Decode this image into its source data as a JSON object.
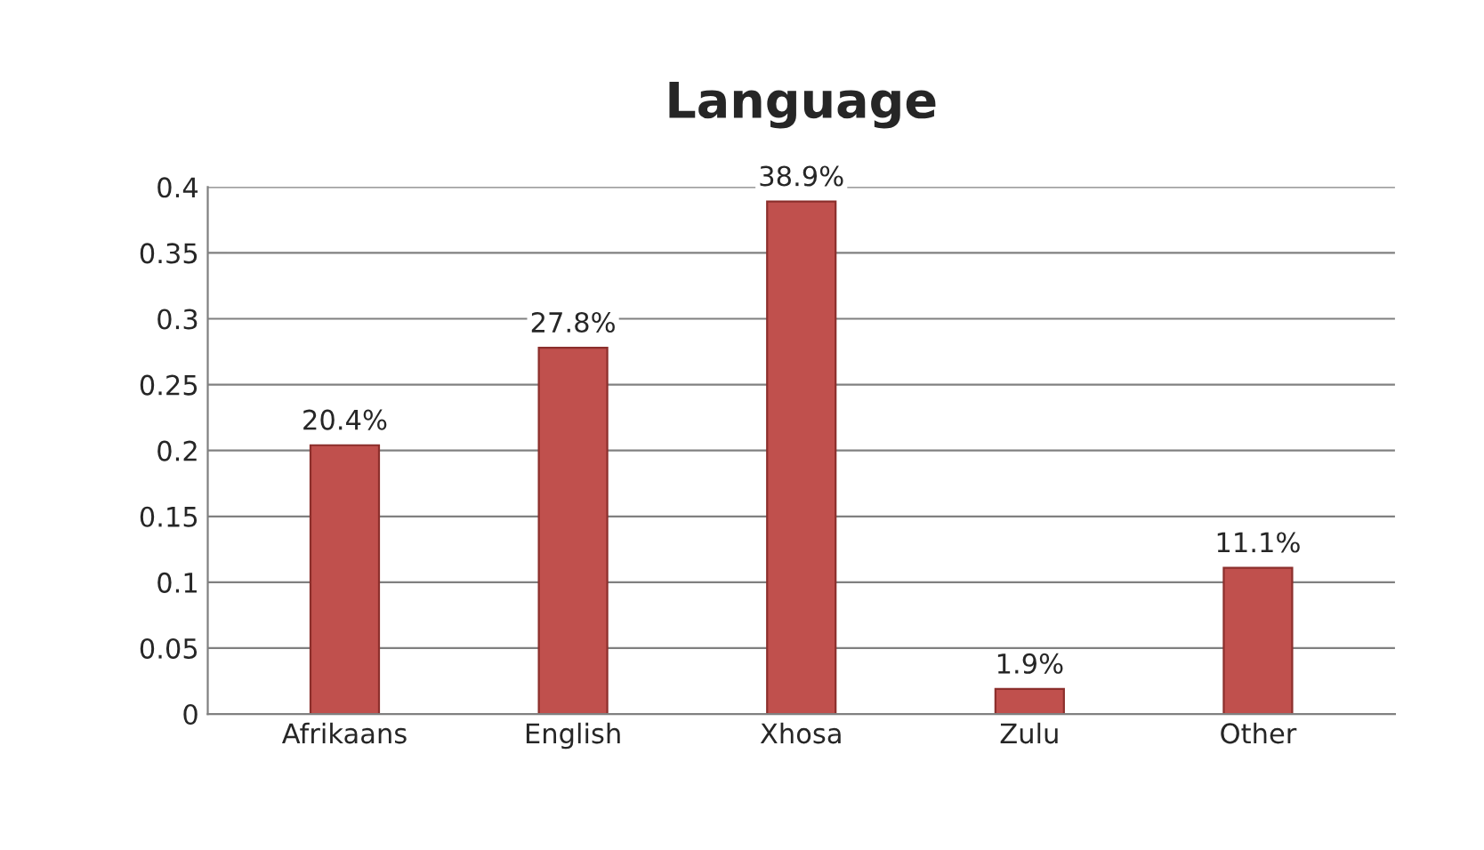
{
  "chart_data": {
    "type": "bar",
    "title": "Language",
    "categories": [
      "Afrikaans",
      "English",
      "Xhosa",
      "Zulu",
      "Other"
    ],
    "values": [
      0.204,
      0.278,
      0.389,
      0.019,
      0.111
    ],
    "value_labels": [
      "20.4%",
      "27.8%",
      "38.9%",
      "1.9%",
      "11.1%"
    ],
    "color": "#c0504d",
    "ylim": [
      0,
      0.4
    ],
    "yticks": [
      0,
      0.05,
      0.1,
      0.15,
      0.2,
      0.25,
      0.3,
      0.35,
      0.4
    ],
    "grid": "y",
    "legend": false
  }
}
